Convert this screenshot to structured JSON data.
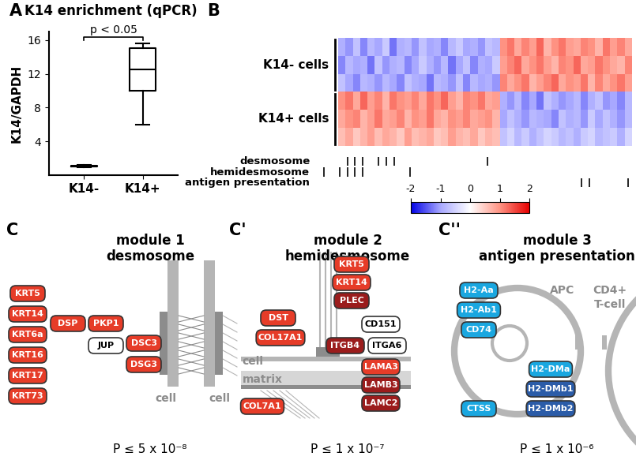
{
  "chart_data": [
    {
      "type": "box",
      "panel": "A",
      "title": "K14 enrichment (qPCR)",
      "y_label": "K14/GAPDH",
      "categories": [
        "K14-",
        "K14+"
      ],
      "stats": [
        {
          "whislo": 0.9,
          "q1": 1.0,
          "med": 1.05,
          "q3": 1.15,
          "whishi": 1.25
        },
        {
          "whislo": 6.0,
          "q1": 10.0,
          "med": 12.5,
          "q3": 15.0,
          "whishi": 15.6
        }
      ],
      "ylim": [
        0,
        17
      ],
      "yticks": [
        4,
        8,
        12,
        16
      ],
      "annotation": "p < 0.05"
    },
    {
      "type": "heatmap",
      "panel": "B",
      "groups": [
        {
          "name": "K14- cells",
          "cells": [
            [
              -0.9,
              -1.1,
              -0.7,
              -1.2,
              -0.8,
              -1.0,
              -0.6,
              -1.3,
              -0.9,
              -0.8,
              -1.1,
              -0.7,
              -1.0,
              -0.9,
              -1.2,
              -0.8,
              -0.6,
              -1.0,
              -0.9,
              -1.1,
              -0.7,
              -0.8,
              1.0,
              1.2,
              0.8,
              1.1,
              0.9,
              1.3,
              0.7,
              1.0,
              1.2,
              0.9,
              0.8,
              1.1,
              1.0,
              0.7,
              1.2,
              0.9,
              1.1,
              0.8
            ],
            [
              -1.2,
              -0.8,
              -1.0,
              -0.9,
              -1.3,
              -0.7,
              -1.1,
              -0.9,
              -0.8,
              -1.2,
              -1.0,
              -0.6,
              -0.9,
              -1.1,
              -0.8,
              -1.3,
              -1.0,
              -0.7,
              -1.2,
              -0.9,
              -1.0,
              -0.6,
              0.9,
              1.1,
              1.3,
              0.8,
              1.0,
              1.2,
              0.9,
              0.7,
              1.1,
              1.0,
              1.3,
              0.8,
              0.9,
              1.2,
              1.0,
              0.8,
              0.7,
              1.1
            ],
            [
              -0.7,
              -1.0,
              -1.2,
              -0.8,
              -0.9,
              -1.1,
              -0.8,
              -1.0,
              -1.2,
              -0.7,
              -0.9,
              -1.0,
              -1.3,
              -0.8,
              -0.9,
              -1.1,
              -0.7,
              -1.2,
              -0.8,
              -1.0,
              -0.9,
              -1.1,
              1.1,
              0.8,
              1.0,
              1.2,
              0.7,
              0.9,
              1.1,
              1.3,
              0.8,
              1.0,
              0.9,
              1.2,
              0.7,
              1.1,
              0.8,
              1.0,
              1.2,
              0.9
            ]
          ]
        },
        {
          "name": "K14+ cells",
          "cells": [
            [
              1.0,
              1.2,
              0.8,
              1.3,
              0.9,
              1.1,
              0.7,
              1.2,
              1.0,
              0.9,
              1.1,
              0.8,
              1.2,
              1.0,
              1.3,
              0.9,
              0.7,
              1.1,
              1.0,
              1.2,
              0.8,
              0.9,
              -0.9,
              -1.1,
              -0.8,
              -1.2,
              -1.0,
              -1.3,
              -0.7,
              -0.9,
              -1.1,
              -1.0,
              -0.8,
              -1.2,
              -0.9,
              -0.7,
              -1.1,
              -1.0,
              -1.2,
              -0.8
            ],
            [
              0.8,
              1.0,
              1.1,
              0.7,
              0.9,
              1.2,
              0.8,
              0.9,
              1.1,
              0.7,
              1.0,
              0.9,
              1.2,
              0.8,
              0.7,
              1.0,
              0.9,
              1.1,
              0.8,
              0.9,
              1.0,
              0.7,
              -1.0,
              -0.7,
              -0.9,
              -1.1,
              -0.8,
              -0.9,
              -1.0,
              -1.2,
              -0.7,
              -0.9,
              -0.8,
              -1.1,
              -0.6,
              -1.0,
              -0.7,
              -0.9,
              -1.1,
              -0.8
            ],
            [
              0.6,
              0.8,
              0.5,
              0.7,
              0.9,
              0.6,
              0.8,
              0.7,
              0.5,
              0.9,
              0.6,
              0.7,
              0.8,
              0.5,
              0.6,
              0.9,
              0.7,
              0.6,
              0.8,
              0.5,
              0.7,
              0.6,
              -0.7,
              -0.5,
              -0.8,
              -0.6,
              -0.9,
              -0.7,
              -0.5,
              -0.6,
              -0.8,
              -0.7,
              -0.9,
              -0.6,
              -0.5,
              -0.8,
              -0.7,
              -0.6,
              -0.9,
              -0.5
            ]
          ]
        }
      ],
      "tracks": [
        {
          "name": "desmosome",
          "columns": [
            3,
            4,
            5,
            7,
            8,
            9,
            21
          ]
        },
        {
          "name": "hemidesmosome",
          "columns": [
            0,
            2,
            3,
            4,
            5,
            11
          ]
        },
        {
          "name": "antigen presentation",
          "columns": [
            33,
            34,
            39
          ]
        }
      ],
      "colorbar": {
        "range": [
          -2,
          2
        ],
        "ticks": [
          -2,
          -1,
          0,
          1,
          2
        ]
      }
    }
  ],
  "modules": [
    {
      "panel": "C",
      "title": "module 1",
      "name": "desmosome",
      "p_value": "P ≤ 5 x 10⁻⁸",
      "labels": [
        "cell",
        "cell"
      ],
      "nodes": [
        {
          "label": "KRT5",
          "color": "#e63c28"
        },
        {
          "label": "KRT14",
          "color": "#e63c28"
        },
        {
          "label": "KRT6a",
          "color": "#e63c28"
        },
        {
          "label": "KRT16",
          "color": "#e63c28"
        },
        {
          "label": "KRT17",
          "color": "#e63c28"
        },
        {
          "label": "KRT73",
          "color": "#e63c28"
        },
        {
          "label": "DSP",
          "color": "#e63c28"
        },
        {
          "label": "PKP1",
          "color": "#e63c28"
        },
        {
          "label": "JUP",
          "color": "#ffffff"
        },
        {
          "label": "DSC3",
          "color": "#e63c28"
        },
        {
          "label": "DSG3",
          "color": "#e63c28"
        }
      ]
    },
    {
      "panel": "C'",
      "title": "module 2",
      "name": "hemidesmosome",
      "p_value": "P ≤ 1 x 10⁻⁷",
      "labels": [
        "cell",
        "matrix"
      ],
      "nodes": [
        {
          "label": "KRT5",
          "color": "#e63c28"
        },
        {
          "label": "KRT14",
          "color": "#e63c28"
        },
        {
          "label": "PLEC",
          "color": "#9b1c1c"
        },
        {
          "label": "DST",
          "color": "#e63c28"
        },
        {
          "label": "COL17A1",
          "color": "#e63c28"
        },
        {
          "label": "CD151",
          "color": "#ffffff"
        },
        {
          "label": "ITGB4",
          "color": "#9b1c1c"
        },
        {
          "label": "ITGA6",
          "color": "#ffffff"
        },
        {
          "label": "LAMA3",
          "color": "#e63c28"
        },
        {
          "label": "LAMB3",
          "color": "#9b1c1c"
        },
        {
          "label": "LAMC2",
          "color": "#9b1c1c"
        },
        {
          "label": "COL7A1",
          "color": "#e63c28"
        }
      ]
    },
    {
      "panel": "C''",
      "title": "module 3",
      "name": "antigen presentation",
      "p_value": "P ≤ 1 x 10⁻⁶",
      "labels": [
        "APC",
        "CD4+",
        "T-cell"
      ],
      "nodes": [
        {
          "label": "H2-Aa",
          "color": "#1aa7e0"
        },
        {
          "label": "H2-Ab1",
          "color": "#1aa7e0"
        },
        {
          "label": "CD74",
          "color": "#1aa7e0"
        },
        {
          "label": "H2-DMa",
          "color": "#1aa7e0"
        },
        {
          "label": "H2-DMb1",
          "color": "#2b5ca8"
        },
        {
          "label": "H2-DMb2",
          "color": "#2b5ca8"
        },
        {
          "label": "CTSS",
          "color": "#1aa7e0"
        }
      ]
    }
  ]
}
